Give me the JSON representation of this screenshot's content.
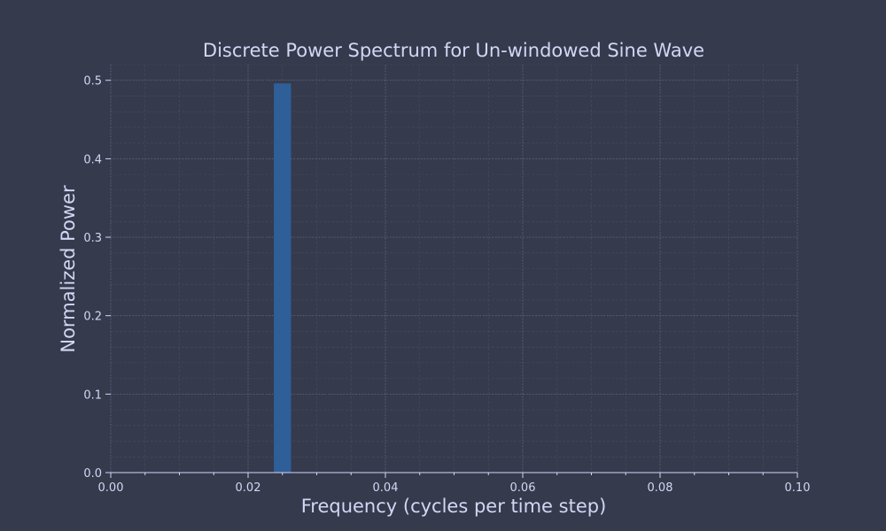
{
  "chart_data": {
    "type": "bar",
    "title": "Discrete Power Spectrum for Un-windowed Sine Wave",
    "xlabel": "Frequency (cycles per time step)",
    "ylabel": "Normalized Power",
    "xlim": [
      0.0,
      0.1
    ],
    "ylim": [
      0.0,
      0.52
    ],
    "xticks": [
      "0.00",
      "0.02",
      "0.04",
      "0.06",
      "0.08",
      "0.10"
    ],
    "yticks": [
      "0.0",
      "0.1",
      "0.2",
      "0.3",
      "0.4",
      "0.5"
    ],
    "x_minor_step": 0.005,
    "y_minor_step": 0.02,
    "grid": true,
    "bar_width": 0.0025,
    "bars": [
      {
        "x": 0.025,
        "value": 0.496
      }
    ],
    "colors": {
      "background": "#353a4d",
      "bar": "#2e5f99",
      "text": "#d4d6f4"
    }
  }
}
